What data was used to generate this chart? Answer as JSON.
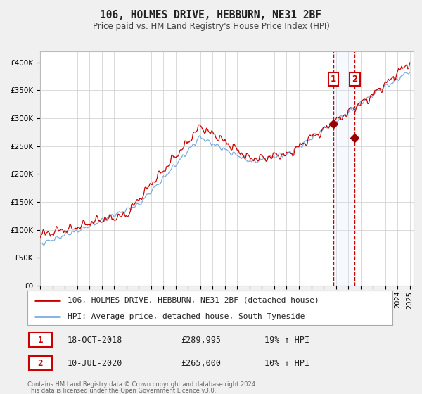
{
  "title": "106, HOLMES DRIVE, HEBBURN, NE31 2BF",
  "subtitle": "Price paid vs. HM Land Registry's House Price Index (HPI)",
  "ylim": [
    0,
    420000
  ],
  "xlim_start": 1995.0,
  "xlim_end": 2025.3,
  "yticks": [
    0,
    50000,
    100000,
    150000,
    200000,
    250000,
    300000,
    350000,
    400000
  ],
  "ytick_labels": [
    "£0",
    "£50K",
    "£100K",
    "£150K",
    "£200K",
    "£250K",
    "£300K",
    "£350K",
    "£400K"
  ],
  "xticks": [
    1995,
    1996,
    1997,
    1998,
    1999,
    2000,
    2001,
    2002,
    2003,
    2004,
    2005,
    2006,
    2007,
    2008,
    2009,
    2010,
    2011,
    2012,
    2013,
    2014,
    2015,
    2016,
    2017,
    2018,
    2019,
    2020,
    2021,
    2022,
    2023,
    2024,
    2025
  ],
  "red_color": "#cc0000",
  "blue_color": "#7aade0",
  "marker_color": "#990000",
  "sale1_x": 2018.79,
  "sale2_x": 2020.52,
  "sale1_price": 289995,
  "sale2_price": 265000,
  "vline_color": "#cc0000",
  "shade_color": "#ddeeff",
  "legend_label_red": "106, HOLMES DRIVE, HEBBURN, NE31 2BF (detached house)",
  "legend_label_blue": "HPI: Average price, detached house, South Tyneside",
  "table_row1_date": "18-OCT-2018",
  "table_row1_price": "£289,995",
  "table_row1_hpi": "19% ↑ HPI",
  "table_row2_date": "10-JUL-2020",
  "table_row2_price": "£265,000",
  "table_row2_hpi": "10% ↑ HPI",
  "footnote1": "Contains HM Land Registry data © Crown copyright and database right 2024.",
  "footnote2": "This data is licensed under the Open Government Licence v3.0.",
  "background_color": "#f0f0f0",
  "plot_bg_color": "#ffffff",
  "grid_color": "#cccccc"
}
